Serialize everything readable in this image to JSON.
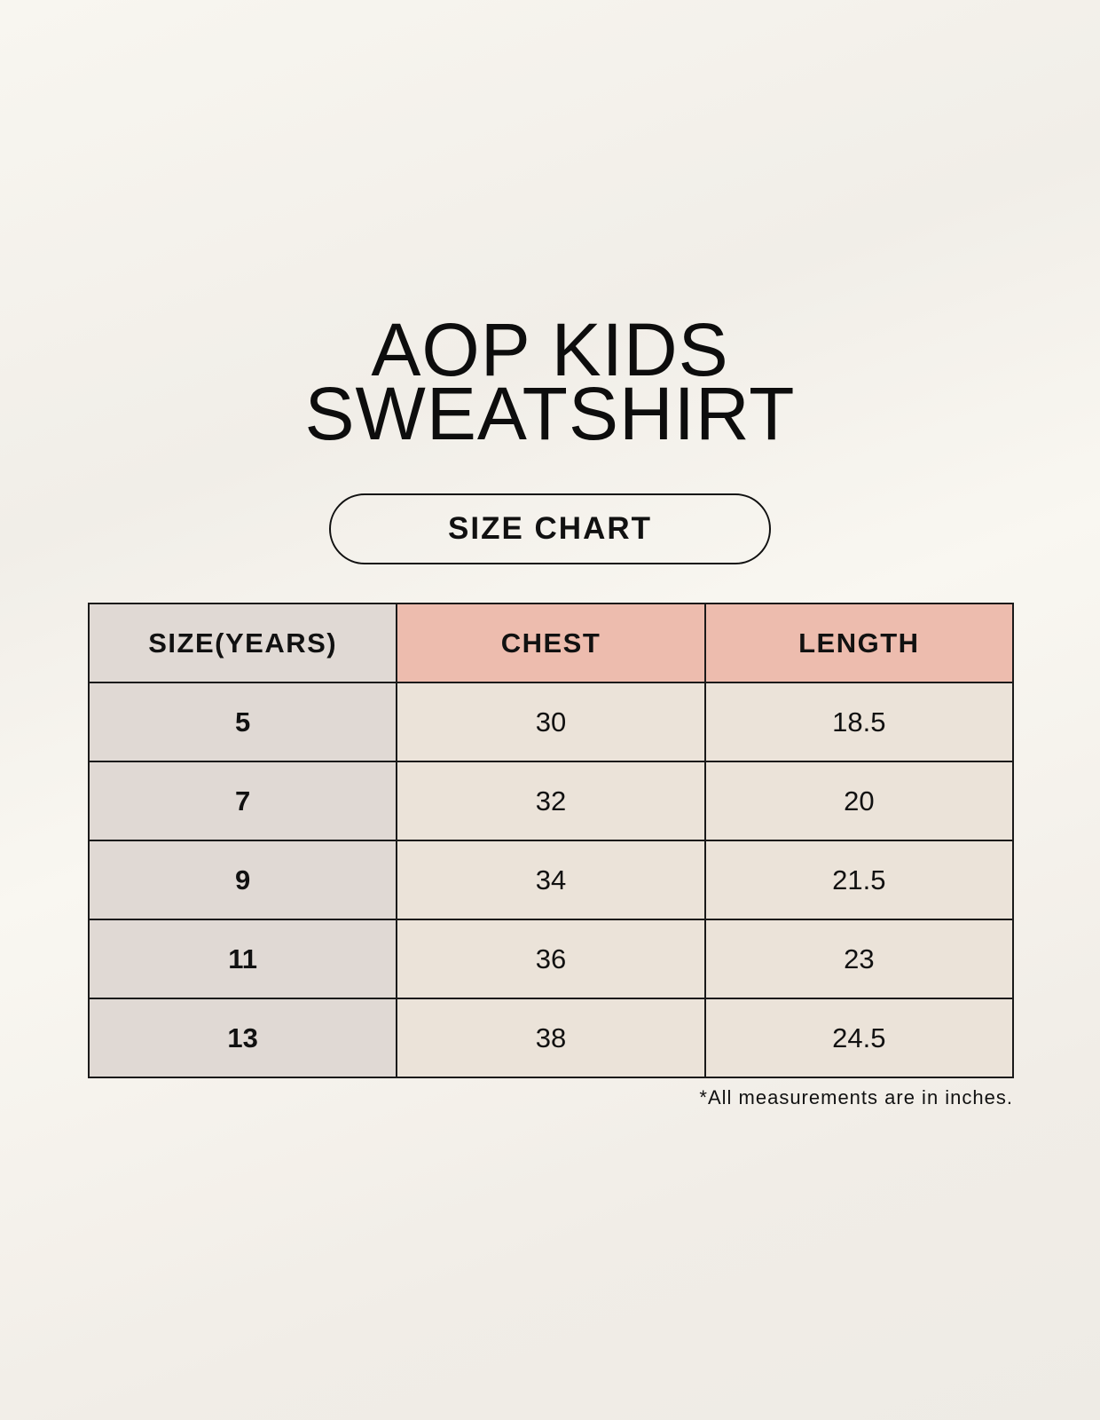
{
  "title": {
    "line1": "AOP KIDS",
    "line2": "SWEATSHIRT"
  },
  "badge": "SIZE CHART",
  "table": {
    "headers": [
      "SIZE(YEARS)",
      "CHEST",
      "LENGTH"
    ],
    "rows": [
      [
        "5",
        "30",
        "18.5"
      ],
      [
        "7",
        "32",
        "20"
      ],
      [
        "9",
        "34",
        "21.5"
      ],
      [
        "11",
        "36",
        "23"
      ],
      [
        "13",
        "38",
        "24.5"
      ]
    ]
  },
  "note": "*All measurements are in inches.",
  "colors": {
    "size_column": "#e0d9d4",
    "header_accent": "#edbcae",
    "cell": "#ebe3d9"
  }
}
